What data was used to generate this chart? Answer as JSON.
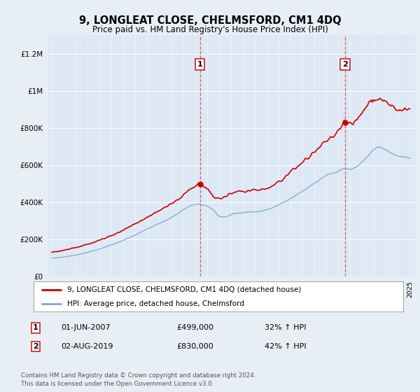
{
  "title": "9, LONGLEAT CLOSE, CHELMSFORD, CM1 4DQ",
  "subtitle": "Price paid vs. HM Land Registry's House Price Index (HPI)",
  "bg_color": "#e8eef5",
  "plot_bg_color": "#dde8f4",
  "grid_color": "#ffffff",
  "red_line_color": "#cc0000",
  "blue_line_color": "#7aaad4",
  "dashed_color": "#dd4444",
  "sale1_year": 2007.42,
  "sale2_year": 2019.58,
  "sale1_price": 499000,
  "sale2_price": 830000,
  "legend_entry1": "9, LONGLEAT CLOSE, CHELMSFORD, CM1 4DQ (detached house)",
  "legend_entry2": "HPI: Average price, detached house, Chelmsford",
  "ann1_date": "01-JUN-2007",
  "ann1_price": "£499,000",
  "ann1_hpi": "32% ↑ HPI",
  "ann2_date": "02-AUG-2019",
  "ann2_price": "£830,000",
  "ann2_hpi": "42% ↑ HPI",
  "footer": "Contains HM Land Registry data © Crown copyright and database right 2024.\nThis data is licensed under the Open Government Licence v3.0.",
  "ylim_max": 1300000,
  "xlim_start": 1994.7,
  "xlim_end": 2025.5
}
